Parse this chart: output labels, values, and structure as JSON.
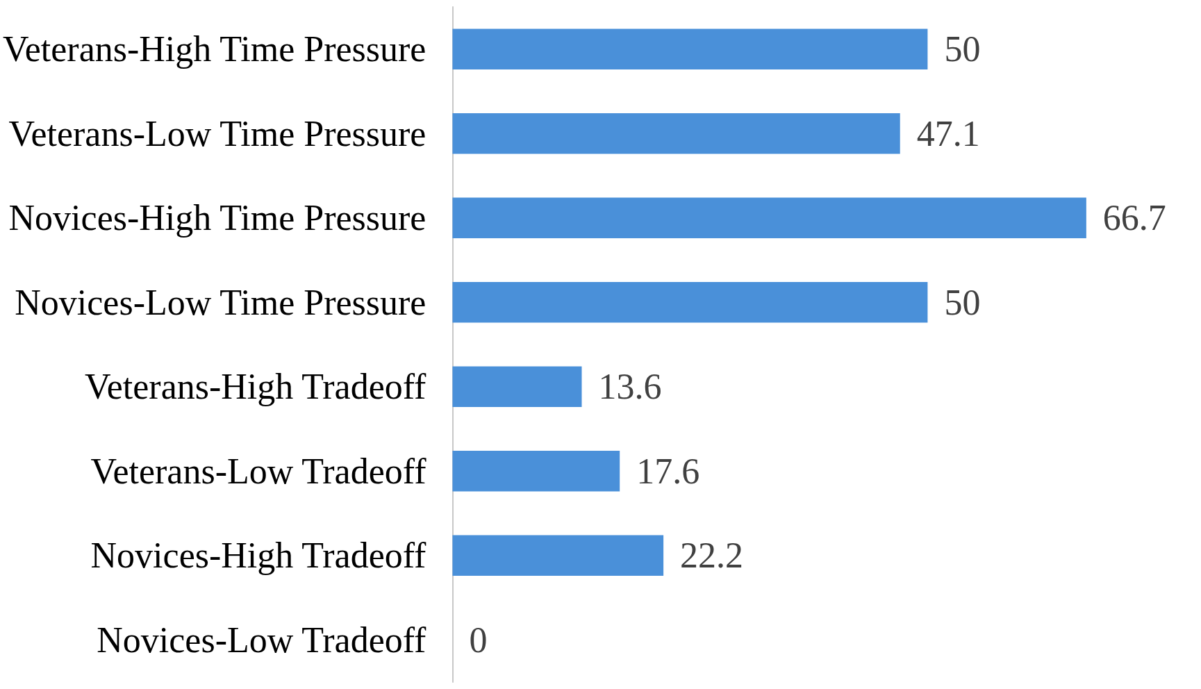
{
  "chart_data": {
    "type": "bar",
    "orientation": "horizontal",
    "categories": [
      "Veterans-High Time Pressure",
      "Veterans-Low Time Pressure",
      "Novices-High Time Pressure",
      "Novices-Low Time Pressure",
      "Veterans-High Tradeoff",
      "Veterans-Low Tradeoff",
      "Novices-High Tradeoff",
      "Novices-Low Tradeoff"
    ],
    "values": [
      50,
      47.1,
      66.7,
      50,
      13.6,
      17.6,
      22.2,
      0
    ],
    "color": "#4a90d9",
    "data_labels": true,
    "tick_labels": "y"
  }
}
